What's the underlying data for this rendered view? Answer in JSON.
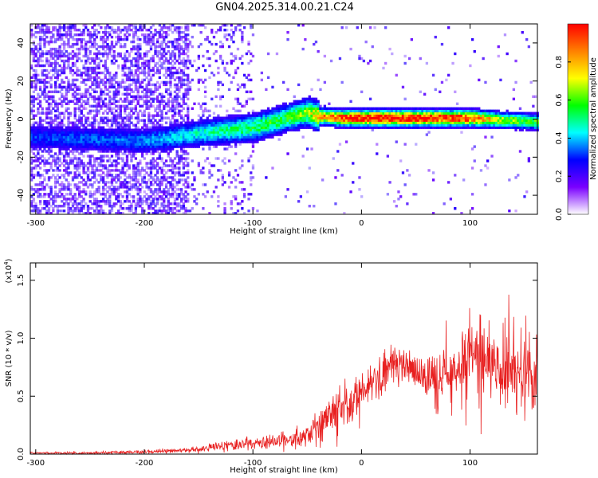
{
  "title": "GN04.2025.314.00.21.C24",
  "colors": {
    "background": "#ffffff",
    "frame": "#000000",
    "snr_line": "#e82020",
    "spectrogram_noise": "#5a12dc"
  },
  "chart_data": [
    {
      "type": "heatmap",
      "xlabel": "Height of straight line (km)",
      "ylabel": "Frequency (Hz)",
      "xlim": [
        -305,
        162
      ],
      "ylim": [
        -50,
        50
      ],
      "x_ticks": [
        -300,
        -200,
        -100,
        0,
        100
      ],
      "y_ticks": [
        -40,
        -20,
        0,
        20,
        40
      ],
      "colorbar": {
        "label": "Normalized spectral amplitude",
        "range": [
          0.0,
          1.0
        ],
        "ticks": [
          0.0,
          0.2,
          0.4,
          0.6,
          0.8
        ],
        "colormap": [
          "#ffffff",
          "#7a00ff",
          "#0000ff",
          "#00ffff",
          "#00ff00",
          "#ffff00",
          "#ff8000",
          "#ff0000"
        ]
      },
      "ridge": {
        "x": [
          -305,
          -200,
          -150,
          -100,
          -70,
          -50,
          -40,
          -20,
          0,
          50,
          100,
          130,
          162
        ],
        "freq": [
          -10,
          -12,
          -8,
          -5,
          0,
          3,
          1,
          0,
          0,
          0,
          0,
          -1,
          -2
        ],
        "peak_amplitude": [
          0.2,
          0.25,
          0.35,
          0.45,
          0.45,
          0.55,
          0.7,
          0.85,
          0.95,
          0.95,
          0.85,
          0.55,
          0.5
        ]
      }
    },
    {
      "type": "line",
      "xlabel": "Height of straight line (km)",
      "ylabel": "SNR (10 * v/v)",
      "y_scale_label": "(x10",
      "y_scale_exponent": "4",
      "y_scale_suffix": ")",
      "xlim": [
        -305,
        162
      ],
      "ylim": [
        0,
        1.65
      ],
      "x_ticks": [
        -300,
        -200,
        -100,
        0,
        100
      ],
      "y_ticks": [
        0.0,
        0.5,
        1.0,
        1.5
      ],
      "y_tick_labels": [
        "0.0",
        "0.5",
        "1.0",
        "1.5"
      ],
      "series": [
        {
          "x": [
            -305,
            -250,
            -200,
            -170,
            -150,
            -130,
            -110,
            -90,
            -70,
            -50,
            -40,
            -30,
            -20,
            -10,
            0,
            10,
            20,
            30,
            40,
            50,
            60,
            70,
            80,
            90,
            100,
            110,
            120,
            130,
            140,
            150,
            162
          ],
          "values": [
            0.01,
            0.01,
            0.02,
            0.03,
            0.04,
            0.07,
            0.08,
            0.1,
            0.12,
            0.16,
            0.2,
            0.3,
            0.42,
            0.45,
            0.52,
            0.6,
            0.7,
            0.8,
            0.78,
            0.72,
            0.65,
            0.62,
            0.7,
            0.75,
            0.8,
            0.82,
            0.8,
            0.75,
            0.72,
            0.7,
            0.65
          ],
          "noise": [
            0.008,
            0.01,
            0.012,
            0.015,
            0.02,
            0.03,
            0.04,
            0.05,
            0.06,
            0.08,
            0.1,
            0.14,
            0.18,
            0.2,
            0.16,
            0.14,
            0.14,
            0.14,
            0.14,
            0.16,
            0.18,
            0.2,
            0.24,
            0.26,
            0.28,
            0.28,
            0.28,
            0.28,
            0.26,
            0.26,
            0.24
          ]
        }
      ]
    }
  ]
}
